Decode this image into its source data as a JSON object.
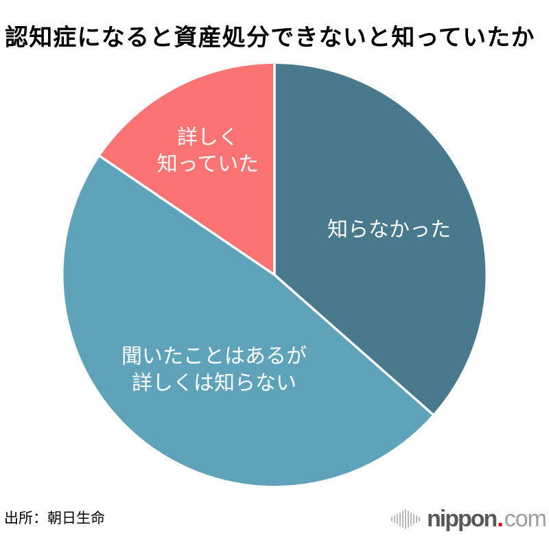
{
  "title": "認知症になると資産処分できないと知っていたか",
  "source": "出所：朝日生命",
  "logo": {
    "brand": "nippon",
    "separator": ".",
    "domain": "com",
    "brand_color": "#595757",
    "dot_color": "#e60012",
    "domain_color": "#9e9e9e"
  },
  "chart_data": {
    "type": "pie",
    "title": "認知症になると資産処分できないと知っていたか",
    "start_angle_deg": 0,
    "direction": "clockwise",
    "unit": "%",
    "values_estimated_from_arc_angles": true,
    "data_labels_shown": false,
    "legend": "none",
    "divider_color": "#ffffff",
    "label_color": "#ffffff",
    "slices": [
      {
        "label": "知らなかった",
        "lines": [
          "知らなかった"
        ],
        "value": 36.5,
        "color": "#48798C"
      },
      {
        "label": "聞いたことはあるが詳しくは知らない",
        "lines": [
          "聞いたことはあるが",
          "詳しくは知らない"
        ],
        "value": 48.0,
        "color": "#5FA3BA"
      },
      {
        "label": "詳しく知っていた",
        "lines": [
          "詳しく",
          "知っていた"
        ],
        "value": 15.5,
        "color": "#FB7373"
      }
    ]
  }
}
